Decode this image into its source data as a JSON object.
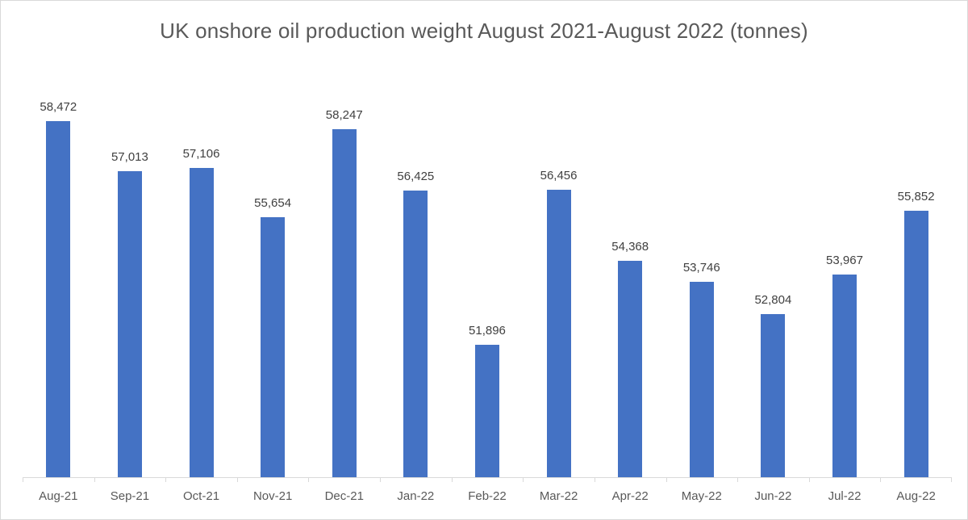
{
  "chart_data": {
    "type": "bar",
    "title": "UK onshore oil production weight August 2021-August 2022 (tonnes)",
    "categories": [
      "Aug-21",
      "Sep-21",
      "Oct-21",
      "Nov-21",
      "Dec-21",
      "Jan-22",
      "Feb-22",
      "Mar-22",
      "Apr-22",
      "May-22",
      "Jun-22",
      "Jul-22",
      "Aug-22"
    ],
    "values": [
      58472,
      57013,
      57106,
      55654,
      58247,
      56425,
      51896,
      56456,
      54368,
      53746,
      52804,
      53967,
      55852
    ],
    "value_labels": [
      "58,472",
      "57,013",
      "57,106",
      "55,654",
      "58,247",
      "56,425",
      "51,896",
      "56,456",
      "54,368",
      "53,746",
      "52,804",
      "53,967",
      "55,852"
    ],
    "xlabel": "",
    "ylabel": "",
    "ylim": [
      48000,
      60000
    ],
    "grid": false,
    "legend": "none",
    "colors": {
      "bar": "#4472C4",
      "title": "#595959",
      "data_label": "#404040",
      "axis_label": "#595959",
      "axis_line": "#D9D9D9",
      "background": "#FFFFFF",
      "border": "#D9D9D9"
    }
  }
}
